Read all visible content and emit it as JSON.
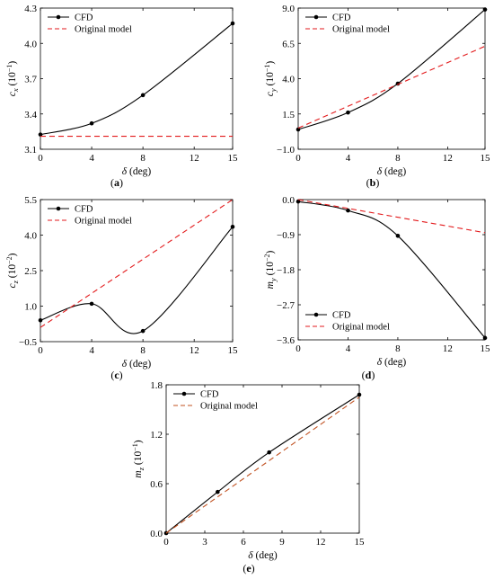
{
  "chart_data": [
    {
      "type": "line",
      "panel": "a",
      "panel_prefix": "(",
      "panel_letter": "a",
      "panel_suffix": ")",
      "xlabel_symbol": "δ",
      "xlabel_unit": " (deg)",
      "ylabel_symbol": "c",
      "ylabel_subscript": "x",
      "ylabel_unit_prefix": " (10",
      "ylabel_unit_exp": "−1",
      "ylabel_unit_suffix": ")",
      "xlim": [
        0,
        15
      ],
      "ylim": [
        3.1,
        4.3
      ],
      "xticks": [
        0,
        4,
        8,
        12,
        15
      ],
      "yticks": [
        3.1,
        3.4,
        3.7,
        4.0,
        4.3
      ],
      "xtick_labels": [
        "0",
        "4",
        "8",
        "12",
        "15"
      ],
      "ytick_labels": [
        "3.1",
        "3.4",
        "3.7",
        "4.0",
        "4.3"
      ],
      "legend_position": "top-left",
      "series": [
        {
          "name": "CFD",
          "color": "#000000",
          "style": "solid",
          "marker": "circle",
          "x": [
            0,
            4,
            8,
            15
          ],
          "values": [
            3.225,
            3.32,
            3.56,
            4.17
          ]
        },
        {
          "name": "Original model",
          "color": "#e31a1c",
          "style": "dashed",
          "marker": "none",
          "x": [
            0,
            15
          ],
          "values": [
            3.21,
            3.21
          ]
        }
      ]
    },
    {
      "type": "line",
      "panel": "b",
      "panel_prefix": "(",
      "panel_letter": "b",
      "panel_suffix": ")",
      "xlabel_symbol": "δ",
      "xlabel_unit": " (deg)",
      "ylabel_symbol": "c",
      "ylabel_subscript": "y",
      "ylabel_unit_prefix": " (10",
      "ylabel_unit_exp": "−1",
      "ylabel_unit_suffix": ")",
      "xlim": [
        0,
        15
      ],
      "ylim": [
        -1.0,
        9.0
      ],
      "xticks": [
        0,
        4,
        8,
        12,
        15
      ],
      "yticks": [
        -1.0,
        1.5,
        4.0,
        6.5,
        9.0
      ],
      "xtick_labels": [
        "0",
        "4",
        "8",
        "12",
        "15"
      ],
      "ytick_labels": [
        "−1.0",
        "1.5",
        "4.0",
        "6.5",
        "9.0"
      ],
      "legend_position": "top-left",
      "series": [
        {
          "name": "CFD",
          "color": "#000000",
          "style": "solid",
          "marker": "circle",
          "x": [
            0,
            4,
            8,
            15
          ],
          "values": [
            0.4,
            1.6,
            3.65,
            8.9
          ]
        },
        {
          "name": "Original model",
          "color": "#e31a1c",
          "style": "dashed",
          "marker": "none",
          "x": [
            0,
            15
          ],
          "values": [
            0.5,
            6.3
          ]
        }
      ]
    },
    {
      "type": "line",
      "panel": "c",
      "panel_prefix": "(",
      "panel_letter": "c",
      "panel_suffix": ")",
      "xlabel_symbol": "δ",
      "xlabel_unit": " (deg)",
      "ylabel_symbol": "c",
      "ylabel_subscript": "z",
      "ylabel_unit_prefix": " (10",
      "ylabel_unit_exp": "−2",
      "ylabel_unit_suffix": ")",
      "xlim": [
        0,
        15
      ],
      "ylim": [
        -0.5,
        5.5
      ],
      "xticks": [
        0,
        4,
        8,
        12,
        15
      ],
      "yticks": [
        -0.5,
        1.0,
        2.5,
        4.0,
        5.5
      ],
      "xtick_labels": [
        "0",
        "4",
        "8",
        "12",
        "15"
      ],
      "ytick_labels": [
        "−0.5",
        "1.0",
        "2.5",
        "4.0",
        "5.5"
      ],
      "legend_position": "top-left",
      "series": [
        {
          "name": "CFD",
          "color": "#000000",
          "style": "solid",
          "marker": "circle",
          "x": [
            0,
            4,
            8,
            15
          ],
          "values": [
            0.4,
            1.1,
            -0.05,
            4.35
          ]
        },
        {
          "name": "Original model",
          "color": "#e31a1c",
          "style": "dashed",
          "marker": "none",
          "x": [
            0,
            15
          ],
          "values": [
            0.1,
            5.5
          ]
        }
      ]
    },
    {
      "type": "line",
      "panel": "d",
      "panel_prefix": "(",
      "panel_letter": "d",
      "panel_suffix": ")",
      "xlabel_symbol": "δ",
      "xlabel_unit": " (deg)",
      "ylabel_symbol": "m",
      "ylabel_subscript": "y",
      "ylabel_unit_prefix": " (10",
      "ylabel_unit_exp": "−2",
      "ylabel_unit_suffix": ")",
      "xlim": [
        0,
        15
      ],
      "ylim": [
        -3.6,
        0.0
      ],
      "xticks": [
        0,
        4,
        8,
        12,
        15
      ],
      "yticks": [
        -3.6,
        -2.7,
        -1.8,
        -0.9,
        0.0
      ],
      "xtick_labels": [
        "0",
        "4",
        "8",
        "12",
        "15"
      ],
      "ytick_labels": [
        "−3.6",
        "−2.7",
        "−1.8",
        "−0.9",
        "0.0"
      ],
      "legend_position": "bottom-left",
      "series": [
        {
          "name": "CFD",
          "color": "#000000",
          "style": "solid",
          "marker": "circle",
          "x": [
            0,
            4,
            8,
            15
          ],
          "values": [
            -0.05,
            -0.28,
            -0.93,
            -3.55
          ]
        },
        {
          "name": "Original model",
          "color": "#e31a1c",
          "style": "dashed",
          "marker": "none",
          "x": [
            0,
            15
          ],
          "values": [
            0.0,
            -0.85
          ]
        }
      ]
    },
    {
      "type": "line",
      "panel": "e",
      "panel_prefix": "(",
      "panel_letter": "e",
      "panel_suffix": ")",
      "xlabel_symbol": "δ",
      "xlabel_unit": " (deg)",
      "ylabel_symbol": "m",
      "ylabel_subscript": "z",
      "ylabel_unit_prefix": " (10",
      "ylabel_unit_exp": "−1",
      "ylabel_unit_suffix": ")",
      "xlim": [
        0,
        15
      ],
      "ylim": [
        0.0,
        1.8
      ],
      "xticks": [
        0,
        3,
        6,
        9,
        12,
        15
      ],
      "yticks": [
        0.0,
        0.6,
        1.2,
        1.8
      ],
      "xtick_labels": [
        "0",
        "3",
        "6",
        "9",
        "12",
        "15"
      ],
      "ytick_labels": [
        "0.0",
        "0.6",
        "1.2",
        "1.8"
      ],
      "legend_position": "top-left",
      "series": [
        {
          "name": "CFD",
          "color": "#000000",
          "style": "solid",
          "marker": "circle",
          "x": [
            0,
            4,
            8,
            15
          ],
          "values": [
            0.0,
            0.5,
            0.98,
            1.68
          ]
        },
        {
          "name": "Original model",
          "color": "#c0501f",
          "style": "dashed",
          "marker": "none",
          "x": [
            0,
            15
          ],
          "values": [
            0.0,
            1.65
          ]
        }
      ]
    }
  ]
}
